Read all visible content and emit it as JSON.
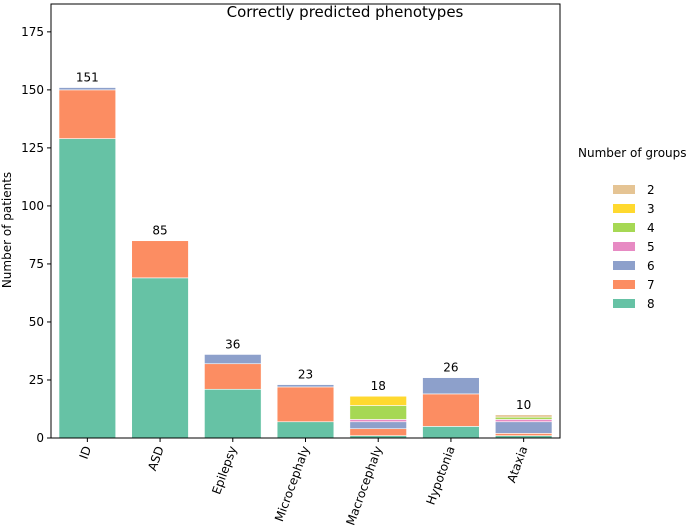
{
  "chart_data": {
    "type": "bar",
    "stacked": true,
    "title": "Correctly predicted phenotypes",
    "ylabel": "Number of patients",
    "xlabel": "",
    "ylim": [
      0,
      187
    ],
    "yticks": [
      0,
      25,
      50,
      75,
      100,
      125,
      150,
      175
    ],
    "categories": [
      "ID",
      "ASD",
      "Epilepsy",
      "Microcephaly",
      "Macrocephaly",
      "Hypotonia",
      "Ataxia"
    ],
    "totals": [
      151,
      85,
      36,
      23,
      18,
      26,
      10
    ],
    "legend": {
      "title": "Number of groups",
      "position": "right"
    },
    "series": [
      {
        "name": "8",
        "color": "#66c2a5",
        "values": [
          129,
          69,
          21,
          7,
          1,
          5,
          1
        ]
      },
      {
        "name": "7",
        "color": "#fc8d62",
        "values": [
          21,
          16,
          11,
          15,
          3,
          14,
          1
        ]
      },
      {
        "name": "6",
        "color": "#8da0cb",
        "values": [
          1,
          0,
          4,
          1,
          3,
          7,
          5
        ]
      },
      {
        "name": "5",
        "color": "#e78ac3",
        "values": [
          0,
          0,
          0,
          0,
          1,
          0,
          1
        ]
      },
      {
        "name": "4",
        "color": "#a6d854",
        "values": [
          0,
          0,
          0,
          0,
          6,
          0,
          1
        ]
      },
      {
        "name": "3",
        "color": "#ffd92f",
        "values": [
          0,
          0,
          0,
          0,
          4,
          0,
          0
        ]
      },
      {
        "name": "2",
        "color": "#e5c494",
        "values": [
          0,
          0,
          0,
          0,
          0,
          0,
          1
        ]
      }
    ]
  }
}
